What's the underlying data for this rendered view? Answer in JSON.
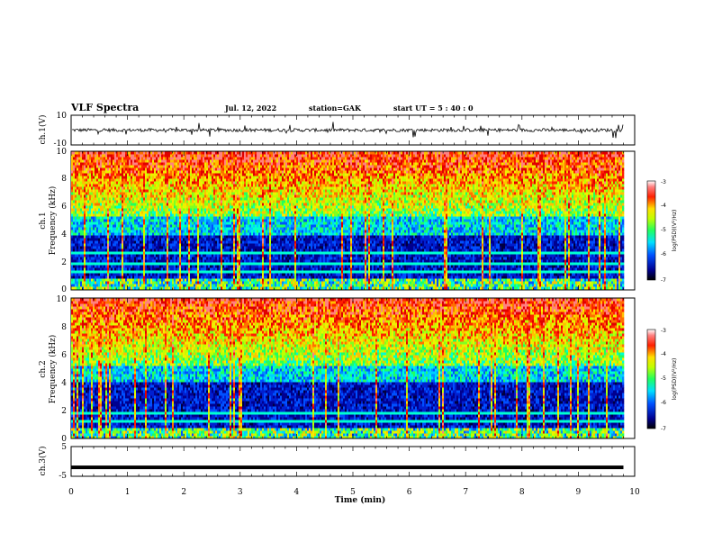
{
  "header": {
    "title": "VLF Spectra",
    "date": "Jul. 12, 2022",
    "station": "station=GAK",
    "start": "start UT = 5 : 40 : 0"
  },
  "chart_data": [
    {
      "type": "line",
      "name": "ch1-waveform",
      "ylabel": "ch.1(V)",
      "ylim": [
        -10,
        10
      ],
      "yticks": [
        "10",
        "-10"
      ],
      "xlim": [
        0,
        10
      ],
      "note_level": 0
    },
    {
      "type": "heatmap",
      "name": "ch1-spectrogram",
      "ylabel": "ch.1\nFrequency (kHz)",
      "ylabel_lines": [
        "ch.1",
        "Frequency (kHz)"
      ],
      "ylim": [
        0,
        10
      ],
      "yticks": [
        "0",
        "2",
        "4",
        "6",
        "8",
        "10"
      ],
      "xlim": [
        0,
        9.8
      ],
      "colorbar": {
        "label": "log(PSD)(V²/Hz)",
        "range": [
          -7,
          -3
        ],
        "ticks": [
          "-3",
          "-4",
          "-5",
          "-6",
          "-7"
        ]
      }
    },
    {
      "type": "heatmap",
      "name": "ch2-spectrogram",
      "ylabel": "ch.2\nFrequency (kHz)",
      "ylabel_lines": [
        "ch.2",
        "Frequency (kHz)"
      ],
      "ylim": [
        0,
        10
      ],
      "yticks": [
        "0",
        "2",
        "4",
        "6",
        "8",
        "10"
      ],
      "xlim": [
        0,
        9.8
      ],
      "colorbar": {
        "label": "log(PSD)(V²/Hz)",
        "range": [
          -7,
          -3
        ],
        "ticks": [
          "-3",
          "-4",
          "-5",
          "-6",
          "-7"
        ]
      }
    },
    {
      "type": "line",
      "name": "ch3-waveform",
      "ylabel": "ch.3(V)",
      "ylim": [
        -5,
        5
      ],
      "yticks": [
        "5",
        "-5"
      ],
      "level": -2,
      "xlim": [
        0,
        10
      ]
    }
  ],
  "xaxis": {
    "label": "Time (min)",
    "ticks": [
      "0",
      "1",
      "2",
      "3",
      "4",
      "5",
      "6",
      "7",
      "8",
      "9",
      "10"
    ],
    "range": [
      0,
      10
    ]
  }
}
